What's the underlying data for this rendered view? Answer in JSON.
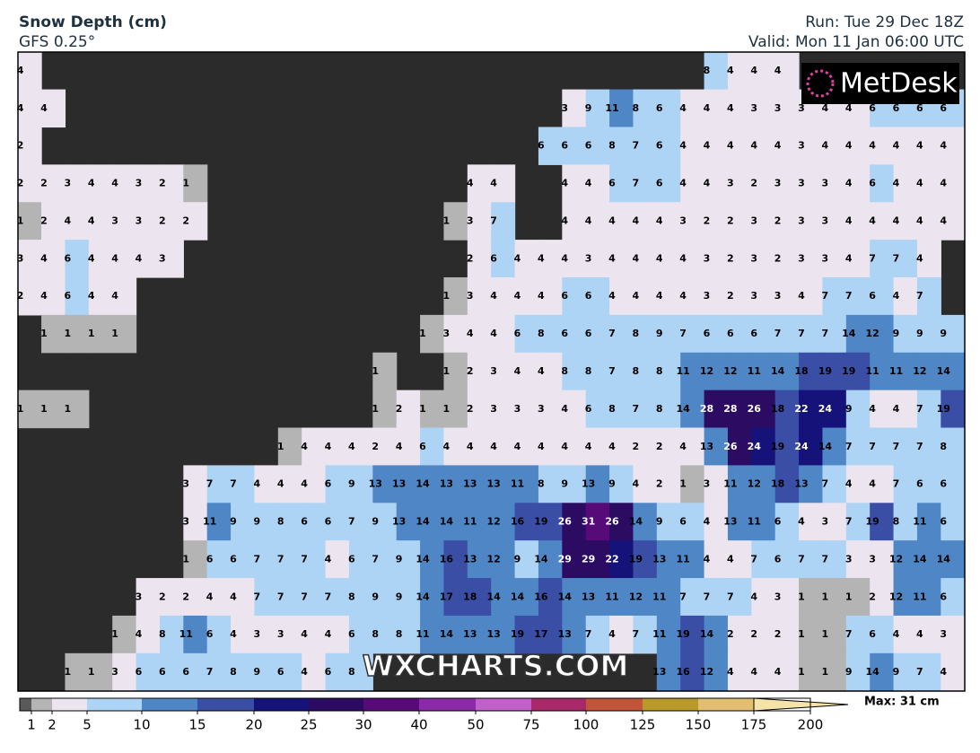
{
  "header": {
    "title": "Snow Depth (cm)",
    "model": "GFS 0.25°",
    "run": "Run: Tue 29 Dec 18Z",
    "valid": "Valid: Mon 11 Jan 06:00 UTC"
  },
  "logo": "MetDesk",
  "watermark": "WXCHARTS.COM",
  "max_label": "Max: 31 cm",
  "legend": {
    "ticks": [
      1,
      2,
      5,
      10,
      15,
      20,
      25,
      30,
      40,
      50,
      75,
      100,
      125,
      150,
      175,
      200
    ],
    "colors": [
      "#5a5a5a",
      "#b4b4b4",
      "#ece4ef",
      "#aed4f5",
      "#4f86c6",
      "#3a4ea6",
      "#15127a",
      "#2c0c62",
      "#560b78",
      "#8a2aa8",
      "#c060c8",
      "#a8286a",
      "#c0553a",
      "#b89a2a",
      "#e0c070",
      "#f6e3a8"
    ]
  },
  "grid": [
    [
      4,
      null,
      null,
      null,
      null,
      null,
      null,
      null,
      null,
      null,
      null,
      null,
      null,
      null,
      null,
      null,
      null,
      null,
      null,
      null,
      null,
      null,
      null,
      null,
      null,
      null,
      null,
      null,
      null,
      8,
      4,
      4,
      4,
      null,
      null,
      null,
      null,
      null,
      null,
      null
    ],
    [
      4,
      4,
      null,
      null,
      null,
      null,
      null,
      null,
      null,
      null,
      null,
      null,
      null,
      null,
      null,
      null,
      null,
      null,
      null,
      null,
      null,
      null,
      null,
      3,
      9,
      11,
      8,
      6,
      4,
      4,
      4,
      3,
      3,
      3,
      4,
      4,
      6,
      6,
      6,
      6
    ],
    [
      2,
      null,
      null,
      null,
      null,
      null,
      null,
      null,
      null,
      null,
      null,
      null,
      null,
      null,
      null,
      null,
      null,
      null,
      null,
      null,
      null,
      null,
      6,
      6,
      6,
      8,
      7,
      6,
      4,
      4,
      4,
      4,
      4,
      3,
      4,
      4,
      4,
      4,
      4,
      4
    ],
    [
      2,
      2,
      3,
      4,
      4,
      3,
      2,
      1,
      null,
      null,
      null,
      null,
      null,
      null,
      null,
      null,
      null,
      null,
      null,
      4,
      4,
      null,
      null,
      4,
      4,
      6,
      7,
      6,
      4,
      4,
      3,
      2,
      3,
      3,
      3,
      4,
      6,
      4,
      4,
      4
    ],
    [
      1,
      2,
      4,
      4,
      3,
      3,
      2,
      2,
      null,
      null,
      null,
      null,
      null,
      null,
      null,
      null,
      null,
      null,
      1,
      3,
      7,
      null,
      null,
      4,
      4,
      4,
      4,
      4,
      3,
      2,
      2,
      3,
      2,
      3,
      3,
      4,
      4,
      4,
      4,
      4
    ],
    [
      3,
      4,
      6,
      4,
      4,
      4,
      3,
      null,
      null,
      null,
      null,
      null,
      null,
      null,
      null,
      null,
      null,
      null,
      null,
      2,
      6,
      4,
      4,
      4,
      3,
      4,
      4,
      4,
      4,
      3,
      2,
      3,
      2,
      3,
      3,
      4,
      7,
      7,
      4,
      null
    ],
    [
      2,
      4,
      6,
      4,
      4,
      null,
      null,
      null,
      null,
      null,
      null,
      null,
      null,
      null,
      null,
      null,
      null,
      null,
      1,
      3,
      4,
      4,
      4,
      6,
      6,
      4,
      4,
      4,
      4,
      3,
      2,
      3,
      3,
      4,
      7,
      7,
      6,
      4,
      7,
      null
    ],
    [
      null,
      1,
      1,
      1,
      1,
      null,
      null,
      null,
      null,
      null,
      null,
      null,
      null,
      null,
      null,
      null,
      null,
      1,
      3,
      4,
      4,
      6,
      8,
      6,
      6,
      7,
      8,
      9,
      7,
      6,
      6,
      6,
      7,
      7,
      7,
      14,
      12,
      9,
      9,
      9
    ],
    [
      null,
      null,
      null,
      null,
      null,
      null,
      null,
      null,
      null,
      null,
      null,
      null,
      null,
      null,
      null,
      1,
      null,
      null,
      1,
      2,
      3,
      4,
      4,
      8,
      8,
      7,
      8,
      8,
      11,
      12,
      12,
      11,
      14,
      18,
      19,
      19,
      11,
      11,
      12,
      14
    ],
    [
      1,
      1,
      1,
      null,
      null,
      null,
      null,
      null,
      null,
      null,
      null,
      null,
      null,
      null,
      null,
      1,
      2,
      1,
      1,
      2,
      3,
      3,
      3,
      4,
      6,
      8,
      7,
      8,
      14,
      28,
      28,
      26,
      18,
      22,
      24,
      9,
      4,
      4,
      7,
      19
    ],
    [
      null,
      null,
      null,
      null,
      null,
      null,
      null,
      null,
      null,
      null,
      null,
      1,
      4,
      4,
      4,
      2,
      4,
      6,
      4,
      4,
      4,
      4,
      4,
      4,
      4,
      4,
      2,
      2,
      4,
      13,
      26,
      24,
      19,
      24,
      14,
      7,
      7,
      7,
      7,
      8
    ],
    [
      null,
      null,
      null,
      null,
      null,
      null,
      null,
      3,
      7,
      7,
      4,
      4,
      4,
      6,
      9,
      13,
      13,
      14,
      13,
      13,
      13,
      11,
      8,
      9,
      13,
      9,
      4,
      2,
      1,
      3,
      11,
      12,
      18,
      13,
      7,
      4,
      4,
      7,
      6,
      6
    ],
    [
      null,
      null,
      null,
      null,
      null,
      null,
      null,
      3,
      11,
      9,
      9,
      8,
      6,
      6,
      7,
      9,
      13,
      14,
      14,
      11,
      12,
      16,
      19,
      26,
      31,
      26,
      14,
      9,
      6,
      4,
      13,
      11,
      6,
      4,
      3,
      7,
      19,
      8,
      11,
      6
    ],
    [
      null,
      null,
      null,
      null,
      null,
      null,
      null,
      1,
      6,
      6,
      7,
      7,
      7,
      4,
      6,
      7,
      9,
      14,
      16,
      13,
      12,
      9,
      14,
      29,
      29,
      22,
      19,
      13,
      11,
      4,
      4,
      7,
      6,
      7,
      7,
      3,
      3,
      12,
      14,
      14
    ],
    [
      null,
      null,
      null,
      null,
      null,
      3,
      2,
      2,
      4,
      4,
      7,
      7,
      7,
      7,
      8,
      9,
      9,
      14,
      17,
      18,
      14,
      14,
      16,
      14,
      13,
      11,
      12,
      11,
      7,
      7,
      7,
      4,
      3,
      1,
      1,
      1,
      2,
      12,
      11,
      6
    ],
    [
      null,
      null,
      null,
      null,
      1,
      4,
      8,
      11,
      6,
      4,
      3,
      3,
      4,
      4,
      6,
      8,
      8,
      11,
      14,
      13,
      13,
      19,
      17,
      13,
      7,
      4,
      7,
      11,
      19,
      14,
      2,
      2,
      2,
      1,
      1,
      7,
      6,
      4,
      4,
      3
    ],
    [
      null,
      null,
      1,
      1,
      3,
      6,
      6,
      6,
      7,
      8,
      9,
      6,
      4,
      6,
      8,
      null,
      null,
      null,
      null,
      null,
      null,
      null,
      null,
      null,
      null,
      null,
      null,
      13,
      16,
      12,
      4,
      4,
      4,
      1,
      1,
      9,
      14,
      9,
      7,
      4
    ]
  ]
}
